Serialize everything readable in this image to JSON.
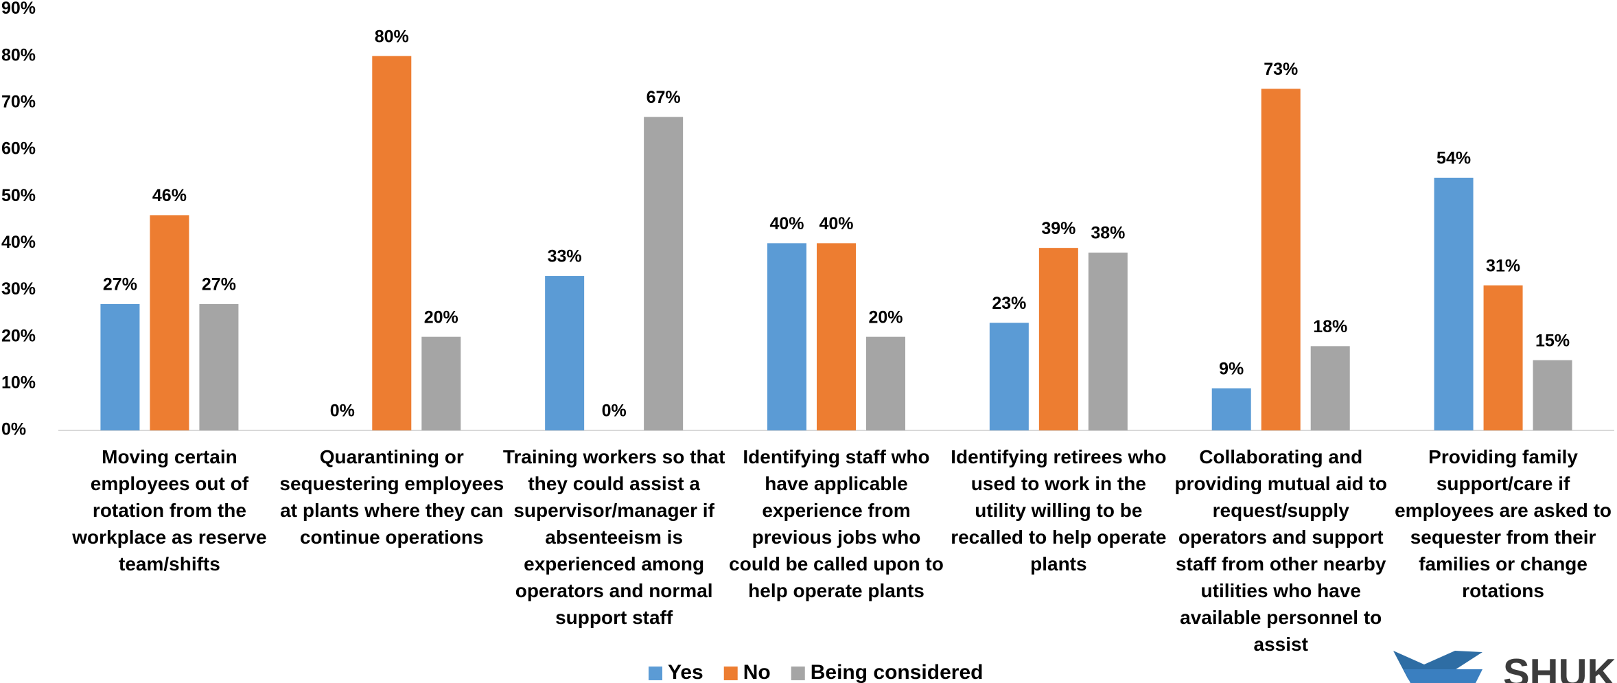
{
  "chart_data": {
    "type": "bar",
    "categories": [
      "Moving certain employees out of rotation from the workplace as reserve team/shifts",
      "Quarantining or sequestering employees at plants where they can continue operations",
      "Training workers so that they could assist a supervisor/manager if absenteeism is experienced among operators and normal support staff",
      "Identifying staff who have applicable experience from previous jobs who could be called upon to help operate plants",
      "Identifying retirees who used to work in the utility willing to be recalled to help operate plants",
      "Collaborating and providing mutual aid to request/supply operators and support staff from other nearby utilities who have available personnel to assist",
      "Providing family support/care if employees are asked to sequester from their families or change rotations"
    ],
    "series": [
      {
        "name": "Yes",
        "color": "#5b9bd5",
        "values": [
          27,
          0,
          33,
          40,
          23,
          9,
          54
        ],
        "value_labels": [
          "27%",
          "0%",
          "33%",
          "40%",
          "23%",
          "9%",
          "54%"
        ]
      },
      {
        "name": "No",
        "color": "#ed7d31",
        "values": [
          46,
          80,
          0,
          40,
          39,
          73,
          31
        ],
        "value_labels": [
          "46%",
          "80%",
          "0%",
          "40%",
          "39%",
          "73%",
          "31%"
        ]
      },
      {
        "name": "Being considered",
        "color": "#a5a5a5",
        "values": [
          27,
          20,
          67,
          20,
          38,
          18,
          15
        ],
        "value_labels": [
          "27%",
          "20%",
          "67%",
          "20%",
          "38%",
          "18%",
          "15%"
        ]
      }
    ],
    "ylim": [
      0,
      90
    ],
    "yticks": [
      {
        "value": 0,
        "label": "0%"
      },
      {
        "value": 10,
        "label": "10%"
      },
      {
        "value": 20,
        "label": "20%"
      },
      {
        "value": 30,
        "label": "30%"
      },
      {
        "value": 40,
        "label": "40%"
      },
      {
        "value": 50,
        "label": "50%"
      },
      {
        "value": 60,
        "label": "60%"
      },
      {
        "value": 70,
        "label": "70%"
      },
      {
        "value": 80,
        "label": "80%"
      },
      {
        "value": 90,
        "label": "90%"
      }
    ],
    "grid": false,
    "legend": "bottom",
    "logo_text": "SHUK"
  }
}
